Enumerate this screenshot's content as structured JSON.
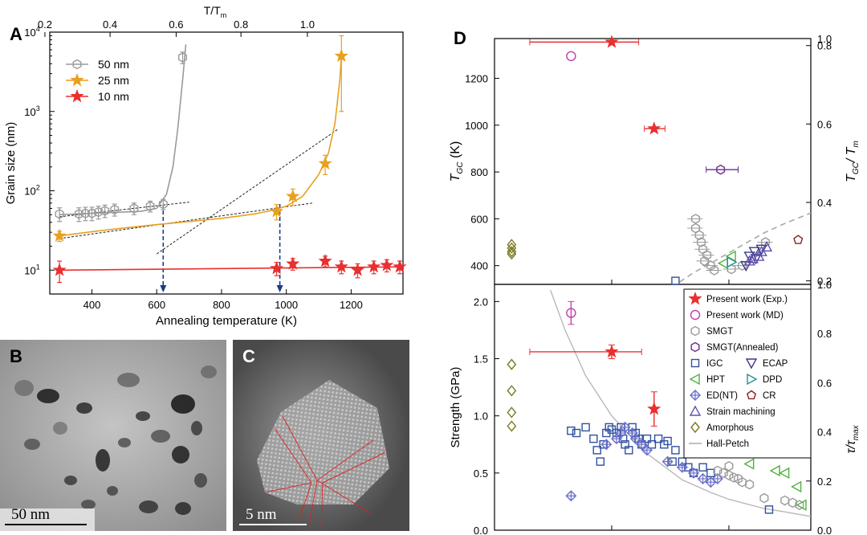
{
  "panel_labels": {
    "A": "A",
    "B": "B",
    "C": "C",
    "D": "D"
  },
  "chart_data": [
    {
      "id": "A",
      "type": "scatter",
      "xlabel": "Annealing temperature (K)",
      "ylabel": "Grain size (nm)",
      "top_xlabel": "T/T",
      "top_xlabel_sub": "m",
      "xlim": [
        270,
        1360
      ],
      "ylim": [
        5,
        10000
      ],
      "yscale": "log",
      "x_ticks": [
        400,
        600,
        800,
        1000,
        1200
      ],
      "x_tick_labels": [
        "400",
        "600",
        "800",
        "1000",
        "1200"
      ],
      "top_ticks": [
        0.2,
        0.4,
        0.6,
        0.8,
        1.0
      ],
      "top_tick_labels": [
        "0.2",
        "0.4",
        "0.6",
        "0.8",
        "1.0"
      ],
      "top_tick_kelvin": [
        255,
        456,
        660,
        860,
        1065
      ],
      "y_ticks": [
        10,
        100,
        1000,
        10000
      ],
      "y_tick_labels": [
        [
          "10",
          "1"
        ],
        [
          "10",
          "2"
        ],
        [
          "10",
          "3"
        ],
        [
          "10",
          "4"
        ]
      ],
      "series": [
        {
          "name": "50 nm",
          "color": "#9a9a9a",
          "marker": "hexagon",
          "x": [
            300,
            360,
            380,
            400,
            420,
            440,
            470,
            530,
            580,
            620,
            680
          ],
          "y": [
            51,
            51,
            52,
            52,
            54,
            56,
            58,
            60,
            64,
            68,
            4800
          ],
          "err": [
            10,
            10,
            10,
            10,
            10,
            10,
            10,
            10,
            10,
            10,
            800
          ],
          "fit_x": [
            300,
            350,
            400,
            450,
            500,
            550,
            600,
            630,
            650,
            665,
            680,
            690
          ],
          "fit_y": [
            50,
            51,
            52,
            53,
            54,
            55,
            60,
            90,
            200,
            600,
            2500,
            7000
          ]
        },
        {
          "name": "25 nm",
          "color": "#e8a020",
          "marker": "star",
          "x": [
            300,
            970,
            1020,
            1120,
            1170
          ],
          "y": [
            27,
            55,
            85,
            220,
            5000
          ],
          "err": [
            4,
            12,
            20,
            60,
            4000
          ],
          "fit_x": [
            300,
            400,
            500,
            600,
            700,
            800,
            900,
            950,
            1000,
            1050,
            1100,
            1130,
            1150,
            1165,
            1170
          ],
          "fit_y": [
            27,
            30.5,
            34,
            37.5,
            41,
            45,
            51,
            56,
            64,
            85,
            160,
            300,
            700,
            2500,
            5000
          ]
        },
        {
          "name": "10 nm",
          "color": "#e83030",
          "marker": "star",
          "x": [
            300,
            970,
            1020,
            1120,
            1170,
            1220,
            1270,
            1310,
            1350
          ],
          "y": [
            10,
            10.5,
            12,
            13,
            11,
            10,
            11,
            11.5,
            11
          ],
          "err": [
            3,
            2,
            2,
            2,
            2,
            2,
            2,
            2,
            2
          ],
          "fit_x": [
            300,
            1360
          ],
          "fit_y": [
            10,
            11
          ]
        }
      ],
      "guide_lines": [
        {
          "x": [
            300,
            700
          ],
          "y": [
            47,
            72
          ]
        },
        {
          "x": [
            600,
            1160
          ],
          "y": [
            16,
            600
          ]
        },
        {
          "x": [
            300,
            1080
          ],
          "y": [
            25,
            70
          ]
        }
      ],
      "arrows_x": [
        620,
        980
      ]
    },
    {
      "id": "D-top",
      "type": "scatter",
      "ylabel": "T",
      "ylabel_sub": "GC",
      "ylabel_unit": " (K)",
      "right_ylabel": "T",
      "right_ylabel_sub": "GC",
      "right_ylabel_rest": "/ T",
      "right_ylabel_sub2": "m",
      "xscale": "log",
      "xlim": [
        10,
        5000
      ],
      "ylim": [
        320,
        1370
      ],
      "y_ticks": [
        400,
        600,
        800,
        1000,
        1200
      ],
      "y_tick_labels": [
        "400",
        "600",
        "800",
        "1000",
        "1200"
      ],
      "right_ticks": [
        0.2,
        0.4,
        0.6,
        0.8,
        1.0
      ],
      "right_tick_labels": [
        "0.2",
        "0.4",
        "0.6",
        "0.8",
        "1.0"
      ],
      "right_tick_kelvin": [
        335,
        670,
        1005,
        1340,
        1370
      ],
      "present_exp": [
        {
          "x": 100,
          "y": 1355,
          "xerr": [
            20,
            170
          ]
        },
        {
          "x": 230,
          "y": 985,
          "xerr": [
            190,
            285
          ]
        }
      ],
      "present_md": [
        {
          "x": 45,
          "y": 1295
        }
      ],
      "smgt_annealed": [
        {
          "x": 850,
          "y": 810,
          "xerr": [
            640,
            1200
          ]
        }
      ],
      "smgt": [
        [
          520,
          600
        ],
        [
          520,
          560
        ],
        [
          560,
          530
        ],
        [
          580,
          500
        ],
        [
          600,
          470
        ],
        [
          650,
          445
        ],
        [
          620,
          420
        ],
        [
          700,
          400
        ],
        [
          750,
          380
        ],
        [
          1050,
          385
        ],
        [
          1300,
          400
        ],
        [
          2050,
          500
        ]
      ],
      "igc": [
        [
          350,
          335
        ]
      ],
      "ecap": [
        [
          1500,
          440
        ],
        [
          1650,
          460
        ],
        [
          1700,
          430
        ],
        [
          1400,
          400
        ],
        [
          1900,
          470
        ]
      ],
      "hpt": [
        [
          900,
          410
        ],
        [
          1050,
          440
        ]
      ],
      "dpd": [
        [
          1050,
          415
        ]
      ],
      "cr": [
        [
          3900,
          510
        ]
      ],
      "strain": [
        [
          1600,
          430
        ],
        [
          1800,
          440
        ],
        [
          1900,
          460
        ],
        [
          2100,
          480
        ],
        [
          1500,
          420
        ]
      ],
      "amorphous": [
        [
          14,
          460
        ],
        [
          14,
          475
        ],
        [
          14,
          490
        ],
        [
          14,
          450
        ]
      ],
      "fit_x": [
        380,
        500,
        700,
        1000,
        1500,
        2000,
        3000,
        4000,
        5000
      ],
      "fit_y": [
        330,
        370,
        410,
        455,
        505,
        540,
        580,
        605,
        625
      ]
    },
    {
      "id": "D-bottom",
      "type": "scatter",
      "ylabel": "Strength (GPa)",
      "right_ylabel": "τ/τ",
      "right_ylabel_sub": "max",
      "xscale": "log",
      "xlim": [
        10,
        5000
      ],
      "ylim": [
        0,
        2.15
      ],
      "y_ticks": [
        0.0,
        0.5,
        1.0,
        1.5,
        2.0
      ],
      "y_tick_labels": [
        "0.0",
        "0.5",
        "1.0",
        "1.5",
        "2.0"
      ],
      "right_ticks": [
        0.0,
        0.2,
        0.4,
        0.6,
        0.8,
        1.0
      ],
      "right_tick_labels": [
        "0.0",
        "0.2",
        "0.4",
        "0.6",
        "0.8",
        "1.0"
      ],
      "present_exp": [
        {
          "x": 100,
          "y": 1.56,
          "xerr": [
            20,
            180
          ],
          "yerr": 0.06
        },
        {
          "x": 230,
          "y": 1.06,
          "yerr": 0.15
        }
      ],
      "present_md": [
        {
          "x": 45,
          "y": 1.9,
          "yerr": 0.1
        }
      ],
      "smgt": [
        [
          800,
          0.52
        ],
        [
          900,
          0.5
        ],
        [
          1000,
          0.48
        ],
        [
          1100,
          0.46
        ],
        [
          1200,
          0.45
        ],
        [
          1300,
          0.42
        ],
        [
          1500,
          0.4
        ],
        [
          1000,
          0.56
        ],
        [
          2000,
          0.28
        ],
        [
          3000,
          0.26
        ],
        [
          3500,
          0.24
        ],
        [
          4000,
          0.22
        ]
      ],
      "igc": [
        [
          45,
          0.87
        ],
        [
          50,
          0.85
        ],
        [
          60,
          0.9
        ],
        [
          70,
          0.8
        ],
        [
          75,
          0.7
        ],
        [
          80,
          0.6
        ],
        [
          85,
          0.75
        ],
        [
          90,
          0.85
        ],
        [
          95,
          0.9
        ],
        [
          100,
          0.88
        ],
        [
          110,
          0.85
        ],
        [
          120,
          0.9
        ],
        [
          125,
          0.8
        ],
        [
          130,
          0.75
        ],
        [
          140,
          0.7
        ],
        [
          150,
          0.9
        ],
        [
          160,
          0.85
        ],
        [
          170,
          0.8
        ],
        [
          180,
          0.75
        ],
        [
          200,
          0.8
        ],
        [
          220,
          0.75
        ],
        [
          250,
          0.8
        ],
        [
          280,
          0.75
        ],
        [
          300,
          0.78
        ],
        [
          330,
          0.6
        ],
        [
          350,
          0.7
        ],
        [
          400,
          0.6
        ],
        [
          450,
          0.55
        ],
        [
          500,
          0.5
        ],
        [
          600,
          0.55
        ],
        [
          700,
          0.5
        ],
        [
          2200,
          0.18
        ]
      ],
      "ed_nt": [
        [
          45,
          0.3
        ],
        [
          90,
          0.75
        ],
        [
          110,
          0.8
        ],
        [
          120,
          0.85
        ],
        [
          130,
          0.9
        ],
        [
          150,
          0.85
        ],
        [
          160,
          0.8
        ],
        [
          180,
          0.75
        ],
        [
          200,
          0.7
        ],
        [
          300,
          0.6
        ],
        [
          400,
          0.55
        ],
        [
          500,
          0.5
        ],
        [
          600,
          0.45
        ],
        [
          700,
          0.42
        ],
        [
          800,
          0.45
        ]
      ],
      "hpt": [
        [
          1500,
          0.58
        ],
        [
          2500,
          0.52
        ],
        [
          3000,
          0.5
        ],
        [
          3800,
          0.38
        ],
        [
          4200,
          0.22
        ]
      ],
      "amorphous": [
        [
          14,
          1.45
        ],
        [
          14,
          1.22
        ],
        [
          14,
          1.03
        ],
        [
          14,
          0.91
        ]
      ],
      "fit_x": [
        30,
        40,
        60,
        100,
        200,
        400,
        700,
        1000,
        2000,
        3000,
        5000
      ],
      "fit_y": [
        2.1,
        1.75,
        1.35,
        1.0,
        0.67,
        0.44,
        0.33,
        0.27,
        0.19,
        0.16,
        0.12
      ],
      "legend": [
        {
          "label": "Present work (Exp.)",
          "marker": "star",
          "color": "#e83030"
        },
        {
          "label": "Present work (MD)",
          "marker": "circle",
          "color": "#c040b0"
        },
        {
          "label": "SMGT",
          "marker": "hexagon",
          "color": "#9a9a9a"
        },
        {
          "label": "SMGT(Annealed)",
          "marker": "hexagon",
          "color": "#6a2a8a"
        },
        {
          "label": "IGC",
          "marker": "square",
          "color": "#3050a0"
        },
        {
          "label": "ECAP",
          "marker": "triangle-down",
          "color": "#3a3a8a"
        },
        {
          "label": "HPT",
          "marker": "triangle-left",
          "color": "#50b040"
        },
        {
          "label": "DPD",
          "marker": "triangle-right",
          "color": "#209090"
        },
        {
          "label": "ED(NT)",
          "marker": "diamond-plus",
          "color": "#6a70c8"
        },
        {
          "label": "CR",
          "marker": "pentagon",
          "color": "#8a2020"
        },
        {
          "label": "Strain machining",
          "marker": "triangle-up",
          "color": "#6050b0"
        },
        {
          "label": "Amorphous",
          "marker": "diamond",
          "color": "#7a7a20"
        },
        {
          "label": "Hall-Petch",
          "marker": "line",
          "color": "#b0b0b0"
        }
      ]
    }
  ],
  "micrographs": {
    "B_scale_label": "50 nm",
    "C_scale_label": "5 nm"
  }
}
